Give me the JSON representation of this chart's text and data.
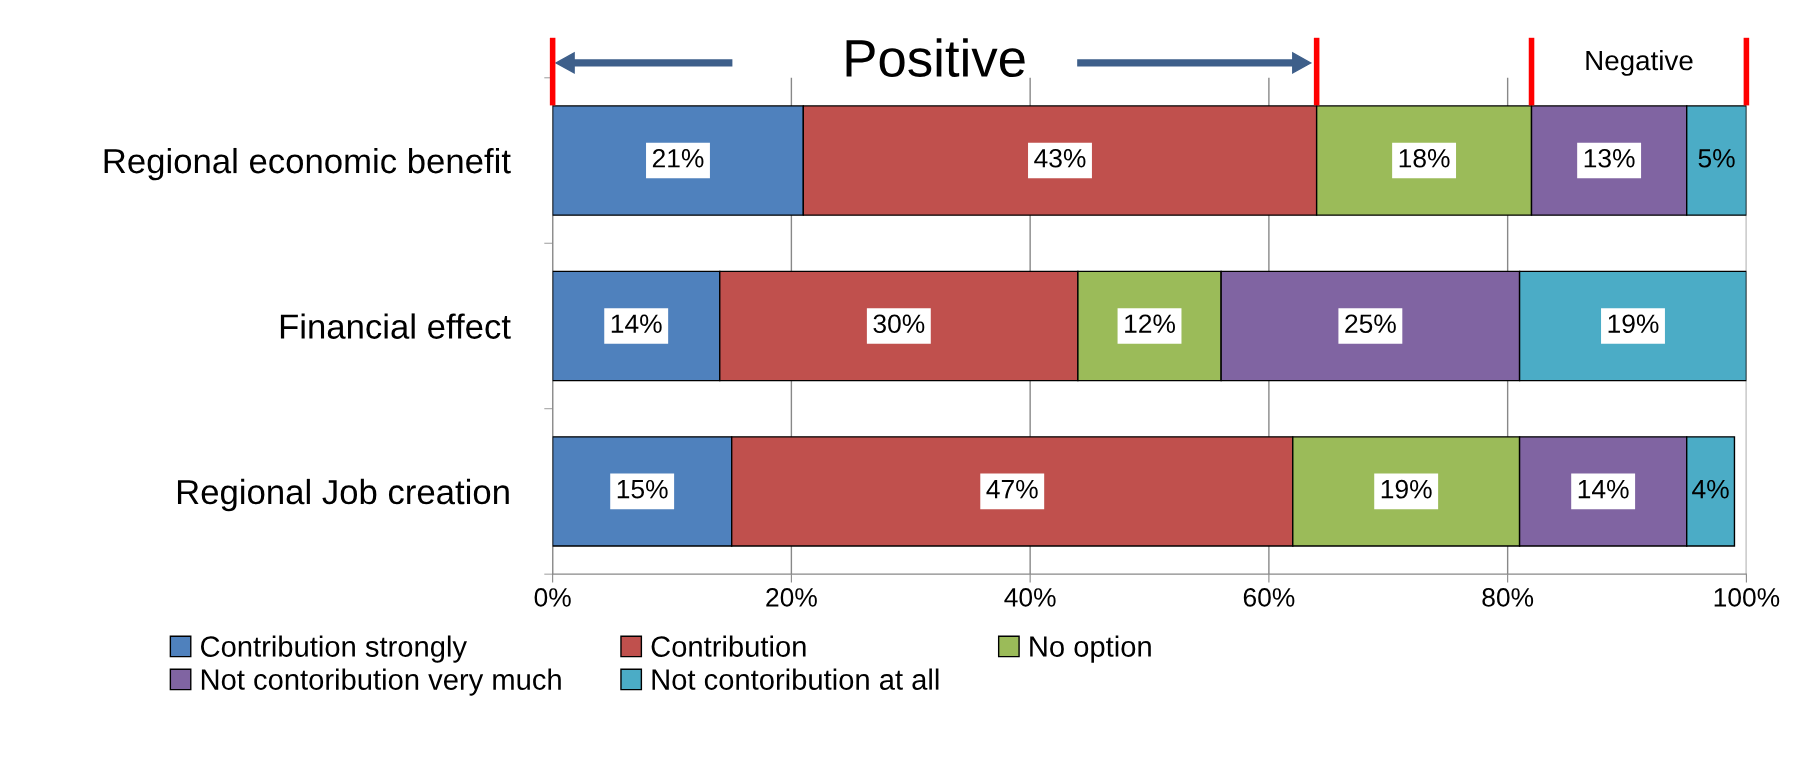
{
  "chart_data": {
    "type": "bar",
    "orientation": "horizontal",
    "stacked": true,
    "categories": [
      "Regional economic benefit",
      "Financial effect",
      "Regional Job creation"
    ],
    "series": [
      {
        "name": "Contribution strongly",
        "color": "#4f81bd",
        "values": [
          21,
          14,
          15
        ],
        "value_labels": [
          "21%",
          "14%",
          "15%"
        ]
      },
      {
        "name": "Contribution",
        "color": "#c0504d",
        "values": [
          43,
          30,
          47
        ],
        "value_labels": [
          "43%",
          "30%",
          "47%"
        ]
      },
      {
        "name": "No option",
        "color": "#9bbb59",
        "values": [
          18,
          12,
          19
        ],
        "value_labels": [
          "18%",
          "12%",
          "19%"
        ]
      },
      {
        "name": "Not contoribution very much",
        "color": "#8064a2",
        "values": [
          13,
          25,
          14
        ],
        "value_labels": [
          "13%",
          "25%",
          "14%"
        ]
      },
      {
        "name": "Not contoribution at all",
        "color": "#4bacc6",
        "values": [
          5,
          19,
          4
        ],
        "value_labels": [
          "5%",
          "19%",
          "4%"
        ]
      }
    ],
    "xlim": [
      0,
      100
    ],
    "xticks": [
      {
        "value": 0,
        "label": "0%"
      },
      {
        "value": 20,
        "label": "20%"
      },
      {
        "value": 40,
        "label": "40%"
      },
      {
        "value": 60,
        "label": "60%"
      },
      {
        "value": 80,
        "label": "80%"
      },
      {
        "value": 100,
        "label": "100%"
      }
    ],
    "grid": "x",
    "legend": "bottom",
    "annotations": [
      "Positive",
      "Negative"
    ]
  }
}
